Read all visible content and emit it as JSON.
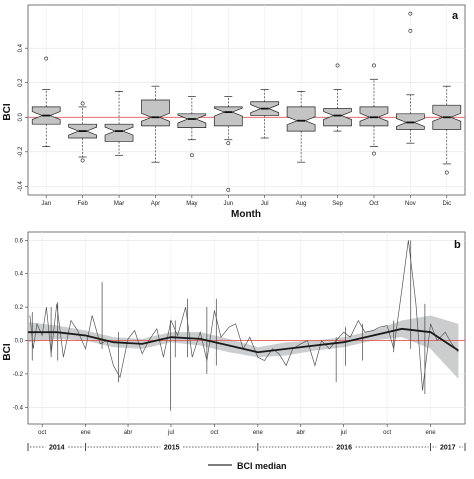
{
  "chart_data": [
    {
      "type": "box",
      "panel_label": "a",
      "xlabel": "Month",
      "ylabel": "BCI",
      "ylim": [
        -0.45,
        0.65
      ],
      "yticks": [
        "-0.4",
        "-0.2",
        "0.0",
        "0.2",
        "0.4"
      ],
      "ytick_values": [
        -0.4,
        -0.2,
        0.0,
        0.2,
        0.4
      ],
      "reference_line": 0.0,
      "categories": [
        "Jan",
        "Feb",
        "Mar",
        "Apr",
        "May",
        "Jun",
        "Jul",
        "Aug",
        "Sep",
        "Oct",
        "Nov",
        "Dic"
      ],
      "boxes": [
        {
          "min": -0.17,
          "q1": -0.04,
          "median": 0.01,
          "q3": 0.06,
          "max": 0.16,
          "outliers": [
            0.34
          ]
        },
        {
          "min": -0.23,
          "q1": -0.12,
          "median": -0.08,
          "q3": -0.04,
          "max": 0.06,
          "outliers": [
            -0.25,
            0.08
          ]
        },
        {
          "min": -0.22,
          "q1": -0.14,
          "median": -0.08,
          "q3": -0.04,
          "max": 0.15,
          "outliers": []
        },
        {
          "min": -0.26,
          "q1": -0.05,
          "median": 0.0,
          "q3": 0.1,
          "max": 0.18,
          "outliers": []
        },
        {
          "min": -0.13,
          "q1": -0.06,
          "median": -0.01,
          "q3": 0.02,
          "max": 0.12,
          "outliers": [
            -0.22
          ]
        },
        {
          "min": -0.13,
          "q1": -0.05,
          "median": 0.03,
          "q3": 0.06,
          "max": 0.12,
          "outliers": [
            -0.15,
            -0.42
          ]
        },
        {
          "min": -0.12,
          "q1": 0.01,
          "median": 0.05,
          "q3": 0.09,
          "max": 0.16,
          "outliers": []
        },
        {
          "min": -0.26,
          "q1": -0.08,
          "median": -0.02,
          "q3": 0.06,
          "max": 0.15,
          "outliers": []
        },
        {
          "min": -0.08,
          "q1": -0.05,
          "median": 0.01,
          "q3": 0.05,
          "max": 0.16,
          "outliers": [
            0.3
          ]
        },
        {
          "min": -0.17,
          "q1": -0.05,
          "median": 0.0,
          "q3": 0.06,
          "max": 0.22,
          "outliers": [
            -0.21,
            0.3
          ]
        },
        {
          "min": -0.15,
          "q1": -0.07,
          "median": -0.03,
          "q3": 0.02,
          "max": 0.13,
          "outliers": [
            0.5,
            0.6
          ]
        },
        {
          "min": -0.27,
          "q1": -0.07,
          "median": 0.0,
          "q3": 0.07,
          "max": 0.18,
          "outliers": [
            -0.32
          ]
        }
      ]
    },
    {
      "type": "line",
      "panel_label": "b",
      "xlabel": "",
      "ylabel": "BCI",
      "ylim": [
        -0.5,
        0.65
      ],
      "yticks": [
        "-0.4",
        "-0.2",
        "0.0",
        "0.2",
        "0.4",
        "0.6"
      ],
      "ytick_values": [
        -0.4,
        -0.2,
        0.0,
        0.2,
        0.4,
        0.6
      ],
      "reference_line": 0.0,
      "xlim": [
        "2014-09-01",
        "2017-03-15"
      ],
      "month_ticks": [
        {
          "date": "2014-10-01",
          "label": "oct"
        },
        {
          "date": "2015-01-01",
          "label": "ene"
        },
        {
          "date": "2015-04-01",
          "label": "abr"
        },
        {
          "date": "2015-07-01",
          "label": "jul"
        },
        {
          "date": "2015-10-01",
          "label": "oct"
        },
        {
          "date": "2016-01-01",
          "label": "ene"
        },
        {
          "date": "2016-04-01",
          "label": "abr"
        },
        {
          "date": "2016-07-01",
          "label": "jul"
        },
        {
          "date": "2016-10-01",
          "label": "oct"
        },
        {
          "date": "2017-01-01",
          "label": "ene"
        }
      ],
      "year_segments": [
        {
          "label": "2014",
          "start": "2014-09-01",
          "end": "2015-01-01"
        },
        {
          "label": "2015",
          "start": "2015-01-01",
          "end": "2016-01-01"
        },
        {
          "label": "2016",
          "start": "2016-01-01",
          "end": "2017-01-01"
        },
        {
          "label": "2017",
          "start": "2017-01-01",
          "end": "2017-03-15"
        }
      ],
      "series": [
        {
          "name": "BCI median",
          "x": [
            "2014-09-05",
            "2014-09-12",
            "2014-09-20",
            "2014-10-01",
            "2014-10-10",
            "2014-10-20",
            "2014-11-01",
            "2014-11-15",
            "2014-12-01",
            "2014-12-15",
            "2015-01-01",
            "2015-01-15",
            "2015-02-01",
            "2015-02-15",
            "2015-03-01",
            "2015-03-15",
            "2015-04-01",
            "2015-04-15",
            "2015-05-01",
            "2015-05-15",
            "2015-06-01",
            "2015-06-15",
            "2015-07-01",
            "2015-07-15",
            "2015-08-01",
            "2015-08-15",
            "2015-09-01",
            "2015-09-15",
            "2015-10-01",
            "2015-10-15",
            "2015-11-01",
            "2015-11-15",
            "2015-12-01",
            "2015-12-15",
            "2016-01-01",
            "2016-01-15",
            "2016-02-01",
            "2016-02-15",
            "2016-03-01",
            "2016-03-15",
            "2016-04-01",
            "2016-04-15",
            "2016-05-01",
            "2016-05-15",
            "2016-06-01",
            "2016-06-15",
            "2016-07-01",
            "2016-07-15",
            "2016-08-01",
            "2016-08-15",
            "2016-09-01",
            "2016-09-15",
            "2016-10-01",
            "2016-10-15",
            "2016-11-01",
            "2016-11-15",
            "2016-12-01",
            "2016-12-15",
            "2017-01-01",
            "2017-01-15",
            "2017-02-01",
            "2017-02-15",
            "2017-03-01"
          ],
          "y": [
            0.15,
            -0.05,
            0.1,
            0.03,
            0.2,
            -0.08,
            0.22,
            -0.1,
            0.12,
            0.06,
            -0.05,
            0.15,
            -0.02,
            0.0,
            -0.15,
            -0.22,
            0.01,
            0.06,
            -0.08,
            0.0,
            0.07,
            -0.1,
            0.12,
            0.03,
            0.2,
            -0.1,
            0.05,
            -0.12,
            0.18,
            0.02,
            0.08,
            0.1,
            -0.05,
            0.02,
            -0.1,
            -0.12,
            -0.05,
            -0.08,
            -0.15,
            -0.05,
            -0.02,
            0.0,
            -0.15,
            0.0,
            -0.05,
            0.0,
            0.05,
            0.02,
            0.12,
            0.05,
            0.06,
            0.08,
            0.09,
            -0.05,
            0.3,
            0.6,
            0.22,
            -0.3,
            0.1,
            0.0,
            0.05,
            -0.02,
            -0.07
          ]
        }
      ],
      "range_segments": [
        {
          "x": "2014-09-10",
          "low": -0.12,
          "high": 0.17
        },
        {
          "x": "2014-10-20",
          "low": -0.1,
          "high": 0.2
        },
        {
          "x": "2014-11-03",
          "low": -0.12,
          "high": 0.23
        },
        {
          "x": "2015-02-05",
          "low": -0.05,
          "high": 0.35
        },
        {
          "x": "2015-03-12",
          "low": -0.25,
          "high": 0.05
        },
        {
          "x": "2015-06-30",
          "low": -0.42,
          "high": 0.12
        },
        {
          "x": "2015-07-10",
          "low": -0.1,
          "high": 0.12
        },
        {
          "x": "2015-08-05",
          "low": -0.1,
          "high": 0.25
        },
        {
          "x": "2015-09-15",
          "low": -0.2,
          "high": 0.2
        },
        {
          "x": "2015-10-05",
          "low": -0.15,
          "high": 0.25
        },
        {
          "x": "2016-06-15",
          "low": -0.25,
          "high": 0.02
        },
        {
          "x": "2016-07-05",
          "low": -0.15,
          "high": 0.08
        },
        {
          "x": "2016-08-10",
          "low": -0.12,
          "high": 0.1
        },
        {
          "x": "2016-10-15",
          "low": -0.07,
          "high": 0.12
        },
        {
          "x": "2016-11-20",
          "low": -0.05,
          "high": 0.6
        },
        {
          "x": "2016-12-20",
          "low": -0.32,
          "high": 0.22
        }
      ],
      "smooth_trend": {
        "x": [
          "2014-09-01",
          "2014-11-01",
          "2015-01-01",
          "2015-03-01",
          "2015-05-01",
          "2015-07-01",
          "2015-09-01",
          "2015-11-01",
          "2016-01-01",
          "2016-03-01",
          "2016-05-01",
          "2016-07-01",
          "2016-09-01",
          "2016-11-01",
          "2017-01-01",
          "2017-03-01"
        ],
        "y": [
          0.05,
          0.05,
          0.03,
          -0.01,
          -0.02,
          0.02,
          0.01,
          -0.03,
          -0.07,
          -0.05,
          -0.03,
          -0.01,
          0.03,
          0.07,
          0.05,
          -0.06
        ],
        "ci_low": [
          -0.01,
          0.01,
          0.0,
          -0.04,
          -0.05,
          -0.01,
          -0.03,
          -0.07,
          -0.1,
          -0.09,
          -0.06,
          -0.04,
          0.0,
          0.02,
          -0.05,
          -0.23
        ],
        "ci_high": [
          0.11,
          0.09,
          0.06,
          0.02,
          0.01,
          0.05,
          0.05,
          0.01,
          -0.04,
          -0.01,
          0.0,
          0.02,
          0.06,
          0.12,
          0.15,
          0.1
        ]
      },
      "legend": {
        "label": "BCI median"
      }
    }
  ]
}
